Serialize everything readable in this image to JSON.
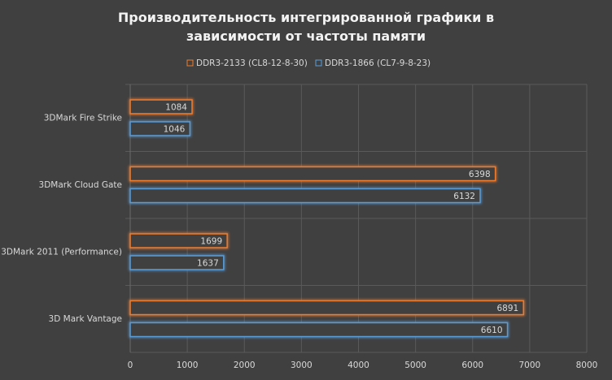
{
  "chart_data": {
    "type": "hbar",
    "title": "Производительность интегрированной графики в зависимости от частоты памяти",
    "categories": [
      "3DMark Fire Strike",
      "3DMark Cloud Gate",
      "3DMark 2011 (Performance)",
      "3D Mark Vantage"
    ],
    "series": [
      {
        "name": "DDR3-2133 (CL8-12-8-30)",
        "color": "#ed7d31",
        "values": [
          1084,
          6398,
          1699,
          6891
        ]
      },
      {
        "name": "DDR3-1866 (CL7-9-8-23)",
        "color": "#5b9bd5",
        "values": [
          1046,
          6132,
          1637,
          6610
        ]
      }
    ],
    "xlim": [
      0,
      8000
    ],
    "xticks": [
      0,
      1000,
      2000,
      3000,
      4000,
      5000,
      6000,
      7000,
      8000
    ],
    "grid": true,
    "legend": "top"
  }
}
